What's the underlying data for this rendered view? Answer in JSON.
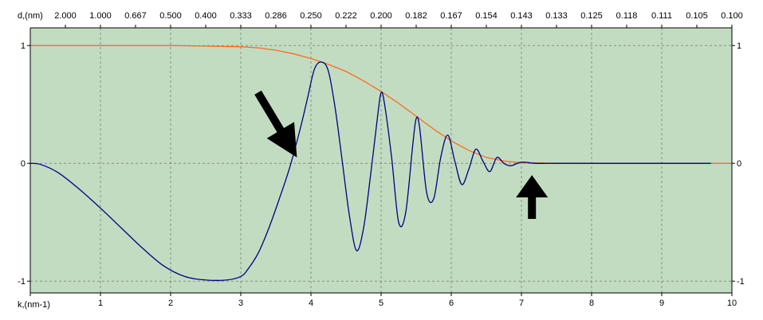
{
  "chart_data": {
    "type": "line",
    "x_axis": {
      "label": "k,(nm-1)",
      "range": [
        0,
        10
      ],
      "ticks": [
        0,
        1,
        2,
        3,
        4,
        5,
        6,
        7,
        8,
        9,
        10
      ],
      "tick_labels": [
        "",
        "1",
        "2",
        "3",
        "4",
        "5",
        "6",
        "7",
        "8",
        "9",
        "10"
      ]
    },
    "top_axis": {
      "label": "d,(nm)",
      "ticks_k": [
        0.5,
        1,
        1.5,
        2,
        2.5,
        3,
        3.5,
        4,
        4.5,
        5,
        5.5,
        6,
        6.5,
        7,
        7.5,
        8,
        8.5,
        9,
        9.5,
        10
      ],
      "tick_labels": [
        "2.000",
        "1.000",
        "0.667",
        "0.500",
        "0.400",
        "0.333",
        "0.286",
        "0.250",
        "0.222",
        "0.200",
        "0.182",
        "0.167",
        "0.154",
        "0.143",
        "0.133",
        "0.125",
        "0.118",
        "0.111",
        "0.105",
        "0.100"
      ]
    },
    "y_axis": {
      "range": [
        -1.1,
        1.15
      ],
      "ticks": [
        -1,
        0,
        1
      ],
      "tick_labels": [
        "-1",
        "0",
        "1"
      ]
    },
    "grid": true,
    "background_color": "#c2dcc2",
    "series": [
      {
        "color": "#ff6a1a",
        "x": [
          0,
          1,
          2,
          2.5,
          3,
          3.25,
          3.5,
          3.75,
          4,
          4.25,
          4.5,
          4.75,
          5,
          5.25,
          5.5,
          5.75,
          6,
          6.25,
          6.5,
          6.75,
          7,
          7.5,
          8,
          9,
          9.7,
          10
        ],
        "y": [
          1,
          1,
          1,
          0.995,
          0.99,
          0.98,
          0.96,
          0.93,
          0.89,
          0.84,
          0.78,
          0.7,
          0.61,
          0.51,
          0.4,
          0.29,
          0.19,
          0.11,
          0.05,
          0.02,
          0.005,
          0.001,
          0,
          0,
          0,
          0
        ]
      },
      {
        "color": "#000080",
        "x": [
          0,
          0.15,
          0.4,
          0.7,
          1,
          1.3,
          1.6,
          1.9,
          2.2,
          2.5,
          2.8,
          3,
          3.1,
          3.25,
          3.4,
          3.55,
          3.7,
          3.85,
          3.95,
          4.05,
          4.15,
          4.25,
          4.35,
          4.45,
          4.55,
          4.65,
          4.75,
          4.85,
          4.95,
          5,
          5.05,
          5.15,
          5.25,
          5.35,
          5.45,
          5.5,
          5.55,
          5.65,
          5.75,
          5.85,
          5.95,
          6.05,
          6.15,
          6.25,
          6.35,
          6.45,
          6.55,
          6.65,
          6.75,
          6.85,
          7,
          7.2,
          7.5,
          8,
          9,
          9.7
        ],
        "y": [
          0,
          -0.01,
          -0.08,
          -0.22,
          -0.38,
          -0.55,
          -0.72,
          -0.87,
          -0.96,
          -0.99,
          -0.99,
          -0.96,
          -0.9,
          -0.76,
          -0.55,
          -0.3,
          -0.03,
          0.3,
          0.55,
          0.8,
          0.86,
          0.78,
          0.45,
          0.0,
          -0.45,
          -0.74,
          -0.55,
          -0.1,
          0.4,
          0.6,
          0.5,
          0.05,
          -0.5,
          -0.42,
          0.15,
          0.38,
          0.3,
          -0.25,
          -0.3,
          0.05,
          0.24,
          0.02,
          -0.18,
          -0.05,
          0.12,
          0.02,
          -0.07,
          0.05,
          0.0,
          -0.02,
          0.01,
          0,
          0,
          0,
          0,
          0
        ]
      }
    ],
    "annotations": [
      {
        "shape": "arrow",
        "direction": "down-right",
        "x": 3.8,
        "y": 0.05
      },
      {
        "shape": "arrow",
        "direction": "up",
        "x": 7.15,
        "y": -0.1
      }
    ]
  }
}
